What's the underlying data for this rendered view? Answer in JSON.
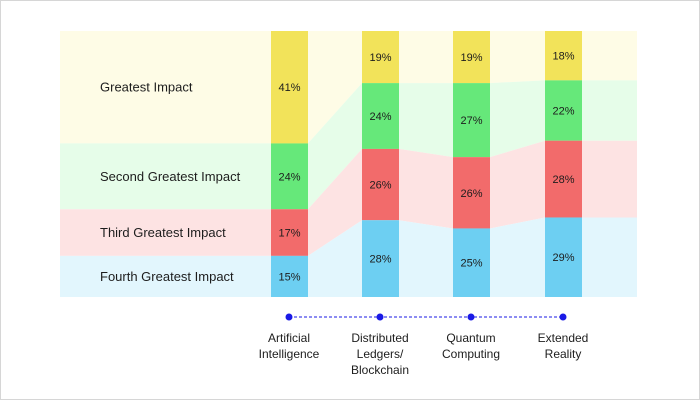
{
  "chart_data": {
    "type": "bar",
    "subtype": "100% stacked bar with connecting bands",
    "title": "",
    "xlabel": "",
    "ylabel": "",
    "ylim": [
      0,
      100
    ],
    "categories": [
      "Artificial Intelligence",
      "Distributed Ledgers/ Blockchain",
      "Quantum Computing",
      "Extended Reality"
    ],
    "category_lines": [
      [
        "Artificial",
        "Intelligence"
      ],
      [
        "Distributed",
        "Ledgers/",
        "Blockchain"
      ],
      [
        "Quantum",
        "Computing"
      ],
      [
        "Extended",
        "Reality"
      ]
    ],
    "series": [
      {
        "name": "Greatest Impact",
        "values": [
          41,
          19,
          19,
          18
        ],
        "color": "#F2E35A",
        "band_color": "#FEFCE6"
      },
      {
        "name": "Second Greatest Impact",
        "values": [
          24,
          24,
          27,
          22
        ],
        "color": "#66E87A",
        "band_color": "#E6FDE9"
      },
      {
        "name": "Third Greatest Impact",
        "values": [
          17,
          26,
          26,
          28
        ],
        "color": "#F26B6B",
        "band_color": "#FDE3E3"
      },
      {
        "name": "Fourth Greatest Impact",
        "values": [
          15,
          28,
          25,
          29
        ],
        "color": "#6DCFF2",
        "band_color": "#E2F6FD"
      }
    ],
    "value_suffix": "%",
    "grid": false,
    "legend": "left",
    "axis_color": "#1a1ae6"
  }
}
